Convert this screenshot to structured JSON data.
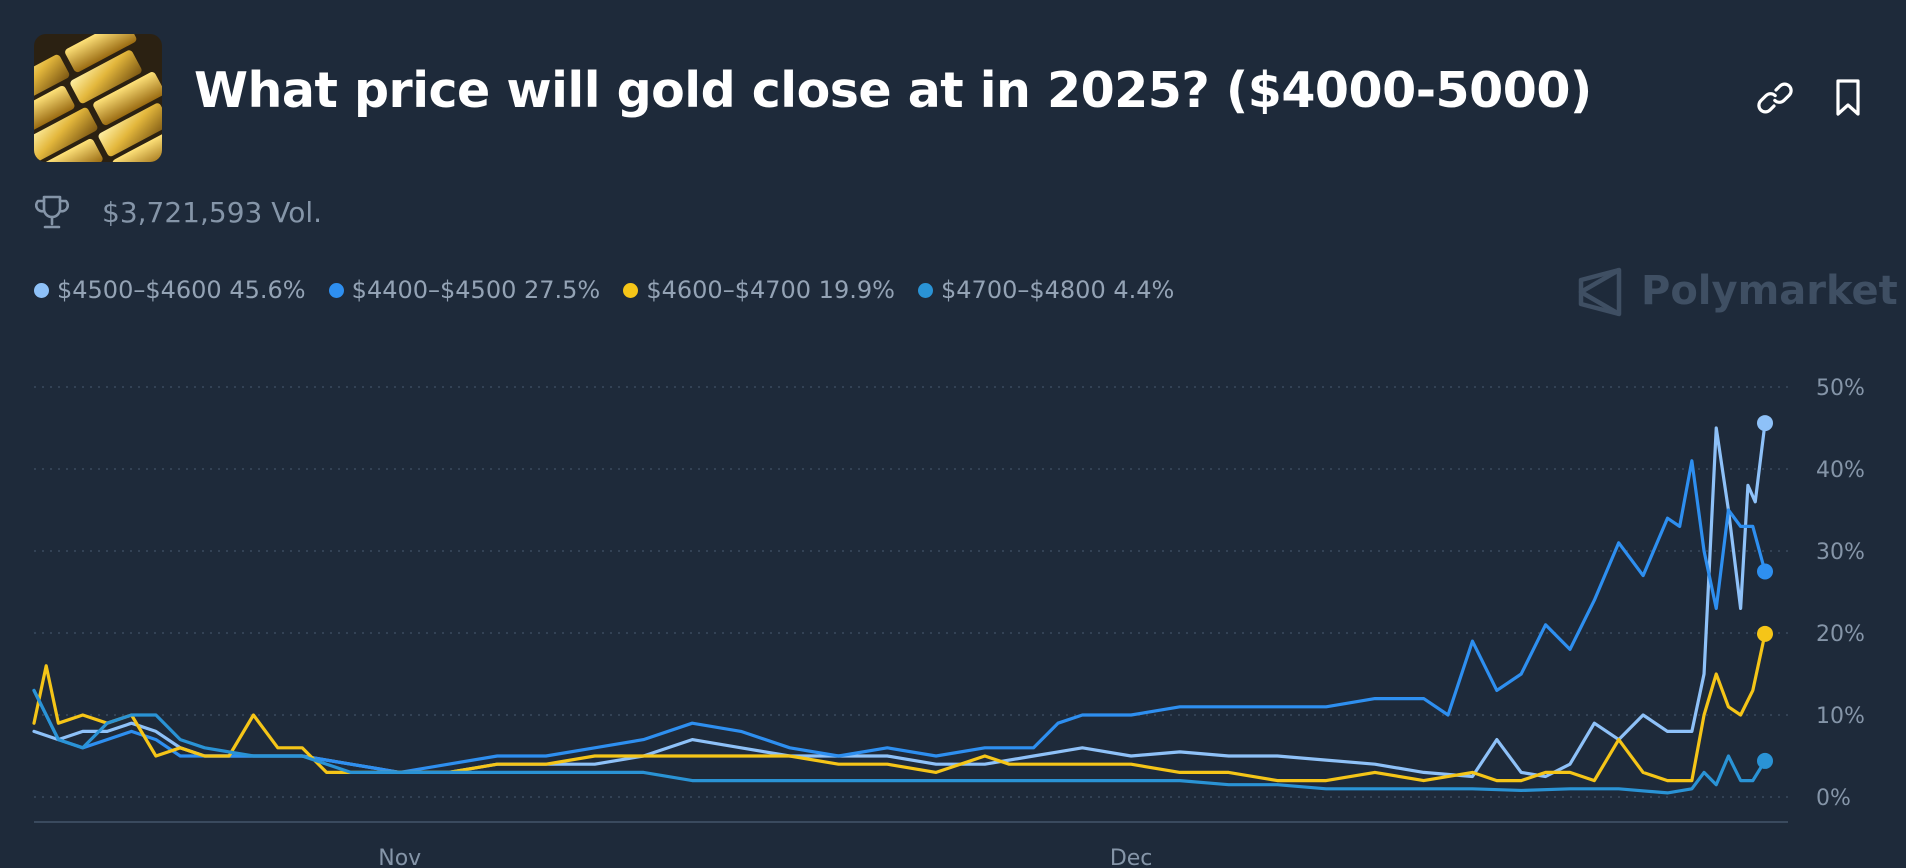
{
  "header": {
    "title": "What price will gold close at in 2025? ($4000-5000)",
    "thumbnail_icon": "gold-bars-image",
    "link_icon": "link-icon",
    "bookmark_icon": "bookmark-icon"
  },
  "volume": {
    "icon": "trophy-icon",
    "text": "$3,721,593 Vol."
  },
  "brand": {
    "name": "Polymarket",
    "icon": "polymarket-logo-icon"
  },
  "colors": {
    "background": "#1e2a3a",
    "series_lightblue": "#8ec1f8",
    "series_blue": "#2e8ff0",
    "series_yellow": "#f5c518",
    "series_teal": "#2a93d5"
  },
  "legend": [
    {
      "label": "$4500–$4600 45.6%",
      "color": "#8ec1f8"
    },
    {
      "label": "$4400–$4500 27.5%",
      "color": "#2e8ff0"
    },
    {
      "label": "$4600–$4700 19.9%",
      "color": "#f5c518"
    },
    {
      "label": "$4700–$4800 4.4%",
      "color": "#2a93d5"
    }
  ],
  "chart_data": {
    "type": "line",
    "title": "",
    "xlabel": "",
    "ylabel": "",
    "x_tick_labels": [
      "Nov",
      "Dec"
    ],
    "x_tick_positions_day": [
      10,
      40
    ],
    "x_range_day": [
      -5,
      66
    ],
    "y_ticks": [
      0,
      10,
      20,
      30,
      40,
      50
    ],
    "y_tick_labels": [
      "0%",
      "10%",
      "20%",
      "30%",
      "40%",
      "50%"
    ],
    "ylim": [
      0,
      50
    ],
    "grid": true,
    "legend_position": "top-left",
    "series": [
      {
        "name": "$4500–$4600",
        "color": "#8ec1f8",
        "last_value": 45.6,
        "points": [
          [
            -5,
            8
          ],
          [
            -4,
            7
          ],
          [
            -3,
            8
          ],
          [
            -2,
            8
          ],
          [
            -1,
            9
          ],
          [
            0,
            8
          ],
          [
            1,
            6
          ],
          [
            2,
            5
          ],
          [
            4,
            5
          ],
          [
            6,
            5
          ],
          [
            8,
            4
          ],
          [
            10,
            3
          ],
          [
            12,
            3
          ],
          [
            14,
            4
          ],
          [
            16,
            4
          ],
          [
            18,
            4
          ],
          [
            20,
            5
          ],
          [
            22,
            7
          ],
          [
            24,
            6
          ],
          [
            26,
            5
          ],
          [
            28,
            5
          ],
          [
            30,
            5
          ],
          [
            32,
            4
          ],
          [
            34,
            4
          ],
          [
            36,
            5
          ],
          [
            37,
            5.5
          ],
          [
            38,
            6
          ],
          [
            40,
            5
          ],
          [
            42,
            5.5
          ],
          [
            44,
            5
          ],
          [
            46,
            5
          ],
          [
            48,
            4.5
          ],
          [
            50,
            4
          ],
          [
            52,
            3
          ],
          [
            54,
            2.5
          ],
          [
            55,
            7
          ],
          [
            56,
            3
          ],
          [
            57,
            2.5
          ],
          [
            58,
            4
          ],
          [
            59,
            9
          ],
          [
            60,
            7
          ],
          [
            61,
            10
          ],
          [
            62,
            8
          ],
          [
            63,
            8
          ],
          [
            63.5,
            15
          ],
          [
            64,
            45
          ],
          [
            64.5,
            35
          ],
          [
            65,
            23
          ],
          [
            65.3,
            38
          ],
          [
            65.6,
            36
          ],
          [
            66,
            45.6
          ]
        ]
      },
      {
        "name": "$4400–$4500",
        "color": "#2e8ff0",
        "last_value": 27.5,
        "points": [
          [
            -5,
            13
          ],
          [
            -4,
            7
          ],
          [
            -3,
            6
          ],
          [
            -2,
            7
          ],
          [
            -1,
            8
          ],
          [
            0,
            7
          ],
          [
            1,
            5
          ],
          [
            2,
            5
          ],
          [
            4,
            5
          ],
          [
            6,
            5
          ],
          [
            8,
            4
          ],
          [
            10,
            3
          ],
          [
            12,
            4
          ],
          [
            14,
            5
          ],
          [
            16,
            5
          ],
          [
            18,
            6
          ],
          [
            20,
            7
          ],
          [
            22,
            9
          ],
          [
            24,
            8
          ],
          [
            26,
            6
          ],
          [
            28,
            5
          ],
          [
            30,
            6
          ],
          [
            32,
            5
          ],
          [
            34,
            6
          ],
          [
            36,
            6
          ],
          [
            37,
            9
          ],
          [
            38,
            10
          ],
          [
            40,
            10
          ],
          [
            42,
            11
          ],
          [
            44,
            11
          ],
          [
            46,
            11
          ],
          [
            48,
            11
          ],
          [
            50,
            12
          ],
          [
            52,
            12
          ],
          [
            53,
            10
          ],
          [
            54,
            19
          ],
          [
            55,
            13
          ],
          [
            56,
            15
          ],
          [
            57,
            21
          ],
          [
            58,
            18
          ],
          [
            59,
            24
          ],
          [
            60,
            31
          ],
          [
            61,
            27
          ],
          [
            62,
            34
          ],
          [
            62.5,
            33
          ],
          [
            63,
            41
          ],
          [
            63.5,
            30
          ],
          [
            64,
            23
          ],
          [
            64.5,
            35
          ],
          [
            65,
            33
          ],
          [
            65.5,
            33
          ],
          [
            66,
            27.5
          ]
        ]
      },
      {
        "name": "$4600–$4700",
        "color": "#f5c518",
        "last_value": 19.9,
        "points": [
          [
            -5,
            9
          ],
          [
            -4.5,
            16
          ],
          [
            -4,
            9
          ],
          [
            -3,
            10
          ],
          [
            -2,
            9
          ],
          [
            -1,
            10
          ],
          [
            0,
            5
          ],
          [
            1,
            6
          ],
          [
            2,
            5
          ],
          [
            3,
            5
          ],
          [
            4,
            10
          ],
          [
            5,
            6
          ],
          [
            6,
            6
          ],
          [
            7,
            3
          ],
          [
            8,
            3
          ],
          [
            10,
            3
          ],
          [
            12,
            3
          ],
          [
            14,
            4
          ],
          [
            16,
            4
          ],
          [
            18,
            5
          ],
          [
            20,
            5
          ],
          [
            22,
            5
          ],
          [
            24,
            5
          ],
          [
            26,
            5
          ],
          [
            28,
            4
          ],
          [
            30,
            4
          ],
          [
            32,
            3
          ],
          [
            34,
            5
          ],
          [
            35,
            4
          ],
          [
            36,
            4
          ],
          [
            38,
            4
          ],
          [
            40,
            4
          ],
          [
            42,
            3
          ],
          [
            44,
            3
          ],
          [
            46,
            2
          ],
          [
            48,
            2
          ],
          [
            50,
            3
          ],
          [
            52,
            2
          ],
          [
            54,
            3
          ],
          [
            55,
            2
          ],
          [
            56,
            2
          ],
          [
            57,
            3
          ],
          [
            58,
            3
          ],
          [
            59,
            2
          ],
          [
            60,
            7
          ],
          [
            61,
            3
          ],
          [
            62,
            2
          ],
          [
            63,
            2
          ],
          [
            63.5,
            10
          ],
          [
            64,
            15
          ],
          [
            64.5,
            11
          ],
          [
            65,
            10
          ],
          [
            65.5,
            13
          ],
          [
            66,
            19.9
          ]
        ]
      },
      {
        "name": "$4700–$4800",
        "color": "#2a93d5",
        "last_value": 4.4,
        "points": [
          [
            -5,
            13
          ],
          [
            -4,
            7
          ],
          [
            -3,
            6
          ],
          [
            -2,
            9
          ],
          [
            -1,
            10
          ],
          [
            0,
            10
          ],
          [
            1,
            7
          ],
          [
            2,
            6
          ],
          [
            4,
            5
          ],
          [
            6,
            5
          ],
          [
            8,
            3
          ],
          [
            10,
            3
          ],
          [
            12,
            3
          ],
          [
            14,
            3
          ],
          [
            16,
            3
          ],
          [
            18,
            3
          ],
          [
            20,
            3
          ],
          [
            22,
            2
          ],
          [
            24,
            2
          ],
          [
            26,
            2
          ],
          [
            28,
            2
          ],
          [
            30,
            2
          ],
          [
            32,
            2
          ],
          [
            34,
            2
          ],
          [
            36,
            2
          ],
          [
            38,
            2
          ],
          [
            40,
            2
          ],
          [
            42,
            2
          ],
          [
            44,
            1.5
          ],
          [
            46,
            1.5
          ],
          [
            48,
            1
          ],
          [
            50,
            1
          ],
          [
            52,
            1
          ],
          [
            54,
            1
          ],
          [
            56,
            0.8
          ],
          [
            58,
            1
          ],
          [
            60,
            1
          ],
          [
            62,
            0.5
          ],
          [
            63,
            1
          ],
          [
            63.5,
            3
          ],
          [
            64,
            1.5
          ],
          [
            64.5,
            5
          ],
          [
            65,
            2
          ],
          [
            65.5,
            2
          ],
          [
            66,
            4.4
          ]
        ]
      }
    ]
  }
}
